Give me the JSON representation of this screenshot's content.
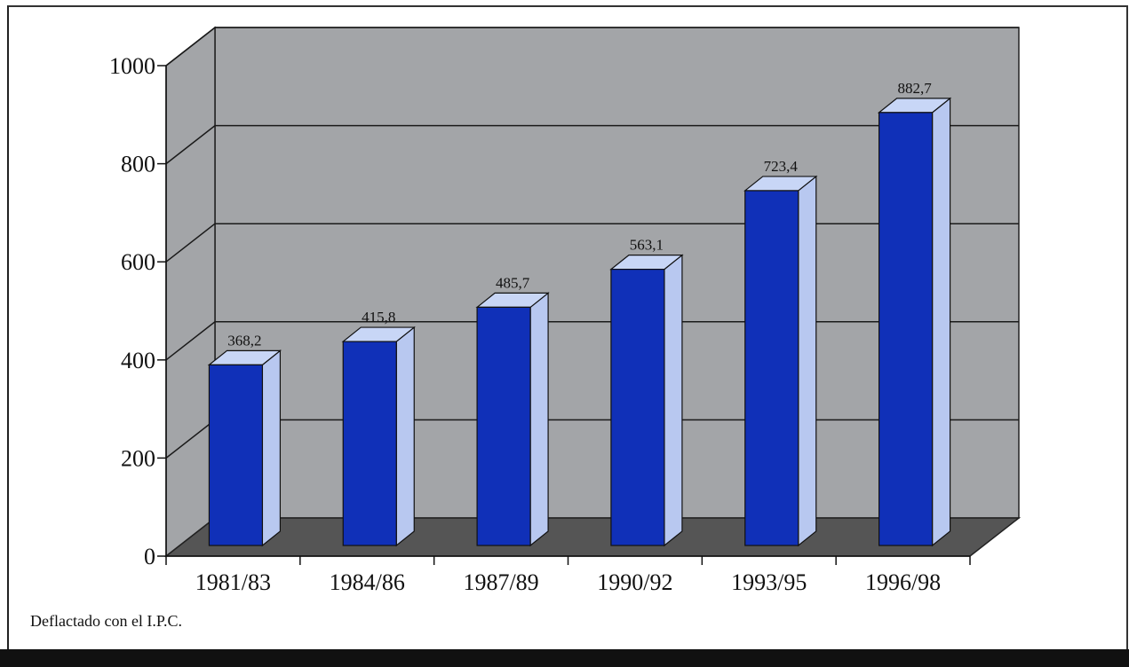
{
  "footnote": "Deflactado con el I.P.C.",
  "colors": {
    "wall": "#a3a5a8",
    "floor": "#555555",
    "bar_front": "#1030b8",
    "bar_side": "#b8c8f0",
    "bar_top": "#c8d6f6"
  },
  "chart_data": {
    "type": "bar",
    "title": "",
    "xlabel": "",
    "ylabel": "",
    "ylim": [
      0,
      1000
    ],
    "yticks": [
      0,
      200,
      400,
      600,
      800,
      1000
    ],
    "categories": [
      "1981/83",
      "1984/86",
      "1987/89",
      "1990/92",
      "1993/95",
      "1996/98"
    ],
    "values": [
      368.2,
      415.8,
      485.7,
      563.1,
      723.4,
      882.7
    ],
    "value_labels": [
      "368,2",
      "415,8",
      "485,7",
      "563,1",
      "723,4",
      "882,7"
    ],
    "grid": true,
    "style": "3d-column"
  }
}
